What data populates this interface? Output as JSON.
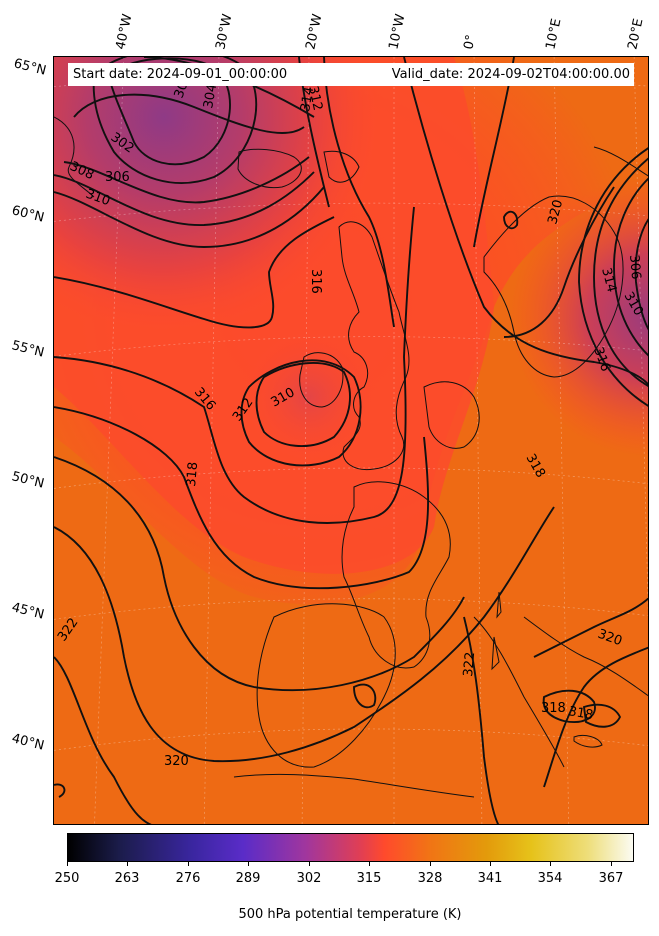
{
  "header": {
    "start_date": "Start date: 2024-09-01_00:00:00",
    "valid_date": "Valid_date: 2024-09-02T04:00:00.00"
  },
  "lon_labels": [
    "40°W",
    "30°W",
    "20°W",
    "10°W",
    "0°",
    "10°E",
    "20°E"
  ],
  "lat_labels": [
    "65°N",
    "60°N",
    "55°N",
    "50°N",
    "45°N",
    "40°N"
  ],
  "contour_labels": [
    "302",
    "304",
    "306",
    "308",
    "310",
    "312",
    "314",
    "316",
    "318",
    "320",
    "322"
  ],
  "colorbar": {
    "min": 250,
    "max": 372,
    "ticks": [
      "250",
      "263",
      "276",
      "289",
      "302",
      "315",
      "328",
      "341",
      "354",
      "367"
    ],
    "label": "500 hPa potential temperature (K)",
    "colormap": "CMRmap"
  },
  "colors": {
    "low_theta": "#a03a7a",
    "mid_theta": "#ff4a2c",
    "high_theta": "#ef6c14"
  }
}
